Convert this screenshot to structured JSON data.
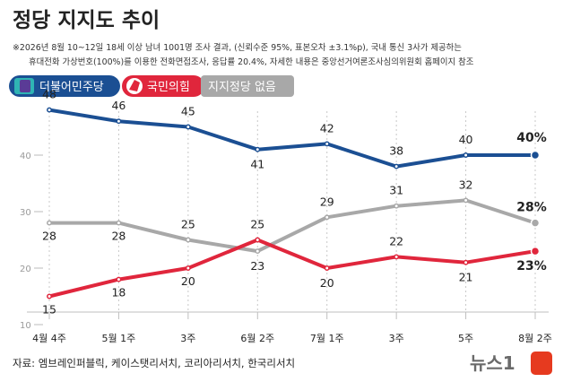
{
  "header": {
    "title": "정당 지지도 추이",
    "note_line1": "※2026년 8월 10~12일 18세 이상 남녀 1001명 조사 결과, (신뢰수준 95%, 표본오차 ±3.1%p), 국내 통신 3사가 제공하는",
    "note_line2": "휴대전화 가상번호(100%)를 이용한 전화면접조사, 응답률 20.4%, 자세한 내용은 중앙선거여론조사심의위원회 홈페이지 참조"
  },
  "footer": {
    "source": "자료: 엠브레인퍼블릭, 케이스탯리서치, 코리아리서치, 한국리서치",
    "brand": "뉴스1"
  },
  "chart_data": {
    "type": "line",
    "categories": [
      "4월 4주",
      "5월 1주",
      "3주",
      "6월 2주",
      "7월 1주",
      "3주",
      "5주",
      "8월 2주"
    ],
    "ylim": [
      10,
      50
    ],
    "yticks": [
      10,
      20,
      30,
      40
    ],
    "grid": false,
    "legend_position": "top-left",
    "series": [
      {
        "name": "더불어민주당",
        "color": "#1b4f93",
        "values": [
          48,
          46,
          45,
          41,
          42,
          38,
          40,
          40
        ]
      },
      {
        "name": "국민의힘",
        "color": "#e0263c",
        "values": [
          15,
          18,
          20,
          25,
          20,
          22,
          21,
          23
        ]
      },
      {
        "name": "지지정당 없음",
        "color": "#a8a8a8",
        "values": [
          28,
          28,
          25,
          23,
          29,
          31,
          32,
          28
        ]
      }
    ]
  }
}
